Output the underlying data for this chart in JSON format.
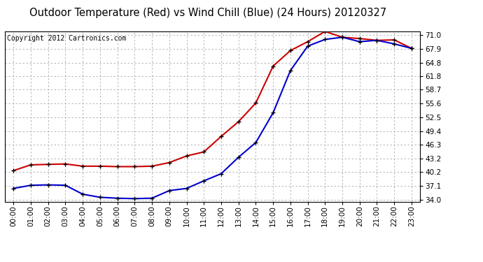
{
  "title": "Outdoor Temperature (Red) vs Wind Chill (Blue) (24 Hours) 20120327",
  "copyright": "Copyright 2012 Cartronics.com",
  "hours": [
    "00:00",
    "01:00",
    "02:00",
    "03:00",
    "04:00",
    "05:00",
    "06:00",
    "07:00",
    "08:00",
    "09:00",
    "10:00",
    "11:00",
    "12:00",
    "13:00",
    "14:00",
    "15:00",
    "16:00",
    "17:00",
    "18:00",
    "19:00",
    "20:00",
    "21:00",
    "22:00",
    "23:00"
  ],
  "temp_red": [
    40.5,
    41.8,
    41.9,
    42.0,
    41.5,
    41.5,
    41.4,
    41.4,
    41.5,
    42.3,
    43.8,
    44.7,
    48.2,
    51.5,
    55.7,
    64.0,
    67.5,
    69.5,
    71.8,
    70.5,
    70.2,
    69.8,
    69.9,
    68.0
  ],
  "wind_chill_blue": [
    36.5,
    37.2,
    37.3,
    37.2,
    35.2,
    34.5,
    34.3,
    34.2,
    34.3,
    36.0,
    36.5,
    38.2,
    39.8,
    43.5,
    46.8,
    53.5,
    63.0,
    68.5,
    70.0,
    70.5,
    69.5,
    69.8,
    69.0,
    68.0
  ],
  "y_ticks": [
    34.0,
    37.1,
    40.2,
    43.2,
    46.3,
    49.4,
    52.5,
    55.6,
    58.7,
    61.8,
    64.8,
    67.9,
    71.0
  ],
  "y_min": 33.5,
  "y_max": 71.8,
  "bg_color": "#ffffff",
  "grid_color": "#aaaaaa",
  "red_color": "#cc0000",
  "blue_color": "#0000cc",
  "title_fontsize": 10.5,
  "copyright_fontsize": 7
}
